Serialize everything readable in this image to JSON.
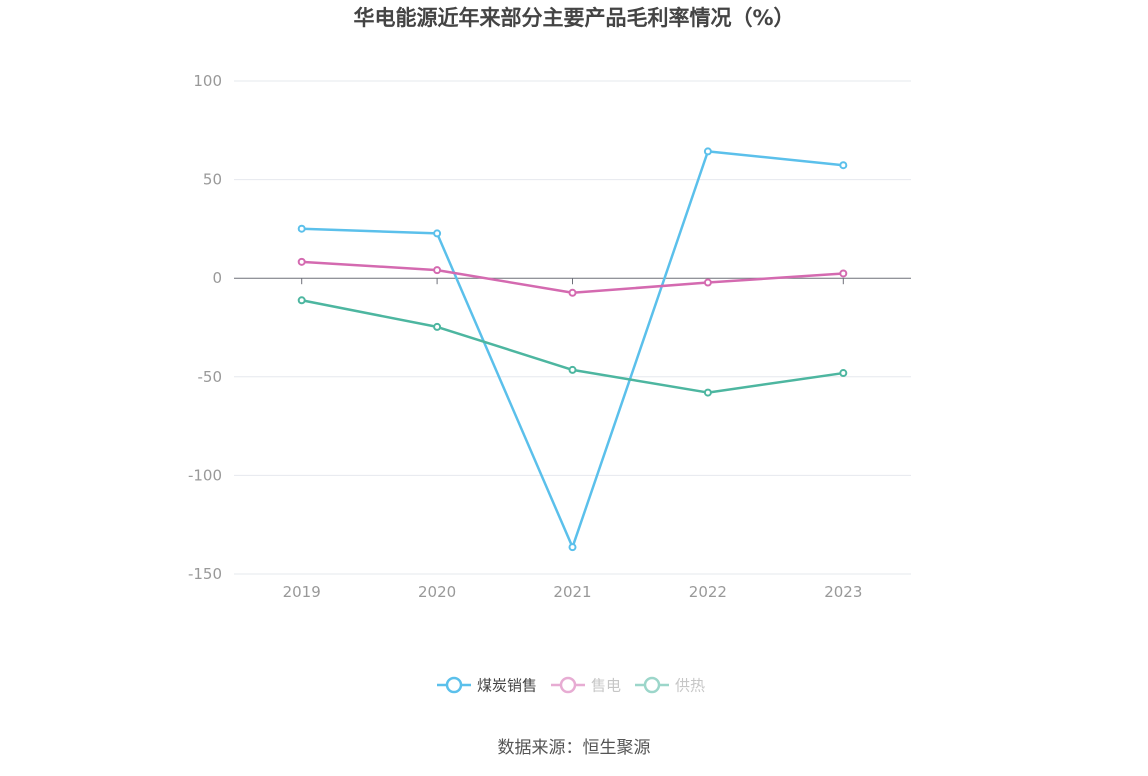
{
  "chart_data": {
    "type": "line",
    "title": "华电能源近年来部分主要产品毛利率情况（%）",
    "x": [
      "2019",
      "2020",
      "2021",
      "2022",
      "2023"
    ],
    "ylim": [
      -150,
      100
    ],
    "yticks": [
      100,
      50,
      0,
      -50,
      -100,
      -150
    ],
    "grid": true,
    "legend_position": "bottom",
    "series": [
      {
        "name": "煤炭销售",
        "values": [
          25.1,
          22.7,
          -136.4,
          64.3,
          57.3
        ],
        "color": "#5bc0eb"
      },
      {
        "name": "售电",
        "values": [
          8.3,
          4.1,
          -7.4,
          -2.2,
          2.4
        ],
        "color": "#d46ab0"
      },
      {
        "name": "供热",
        "values": [
          -11.2,
          -24.7,
          -46.5,
          -58.0,
          -48.1
        ],
        "color": "#4db6a0"
      }
    ]
  },
  "source": "数据来源：恒生聚源"
}
